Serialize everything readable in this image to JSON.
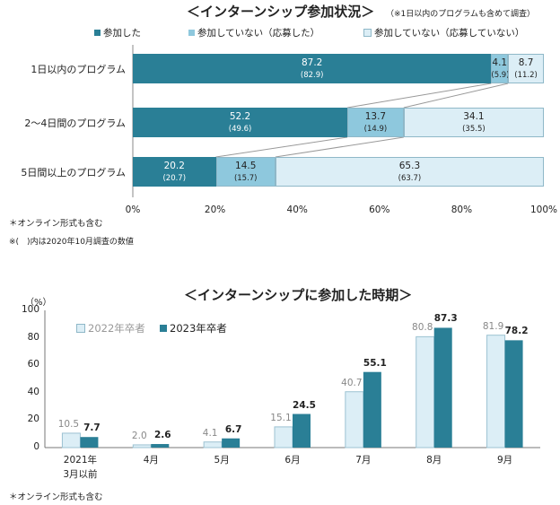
{
  "top_chart": {
    "title": "＜インターンシップ参加状況＞",
    "note_top": "（※1日以内のプログラムも含めて調査）",
    "legend": [
      "参加した",
      "参加していない（応募した）",
      "参加していない（応募していない）"
    ],
    "footnote1": "＊オンライン形式も含む",
    "footnote2": "※(　)内は2020年10月調査の数値",
    "colors": [
      "#2a7f96",
      "#8ec8dd",
      "#dceef6"
    ]
  },
  "bottom_chart": {
    "title": "＜インターンシップに参加した時期＞",
    "yunit": "（%）",
    "legend": [
      "2022年卒者",
      "2023年卒者"
    ],
    "footnote": "＊オンライン形式も含む",
    "colors": [
      "#dceef6",
      "#2a7f96"
    ]
  },
  "chart_data": [
    {
      "type": "bar",
      "orientation": "horizontal-stacked",
      "title": "＜インターンシップ参加状況＞",
      "categories": [
        "1日以内のプログラム",
        "2～4日間のプログラム",
        "5日間以上のプログラム"
      ],
      "series": [
        {
          "name": "参加した",
          "values": [
            87.2,
            52.2,
            20.2
          ],
          "prev_labels": [
            "(82.9)",
            "(49.6)",
            "(20.7)"
          ]
        },
        {
          "name": "参加していない（応募した）",
          "values": [
            4.1,
            13.7,
            14.5
          ],
          "prev_labels": [
            "(5.9)",
            "(14.9)",
            "(15.7)"
          ]
        },
        {
          "name": "参加していない（応募していない）",
          "values": [
            8.7,
            34.1,
            65.3
          ],
          "prev_labels": [
            "(11.2)",
            "(35.5)",
            "(63.7)"
          ]
        }
      ],
      "xticks": [
        "0%",
        "20%",
        "40%",
        "60%",
        "80%",
        "100%"
      ],
      "xlim": [
        0,
        100
      ]
    },
    {
      "type": "bar",
      "title": "＜インターンシップに参加した時期＞",
      "categories": [
        "2021年\n3月以前",
        "4月",
        "5月",
        "6月",
        "7月",
        "8月",
        "9月"
      ],
      "series": [
        {
          "name": "2022年卒者",
          "values": [
            10.5,
            2.0,
            4.1,
            15.1,
            40.7,
            80.8,
            81.9
          ],
          "labels": [
            "10.5",
            "2.0",
            "4.1",
            "15.1",
            "40.7",
            "80.8",
            "81.9"
          ]
        },
        {
          "name": "2023年卒者",
          "values": [
            7.7,
            2.6,
            6.7,
            24.5,
            55.1,
            87.3,
            78.2
          ],
          "labels": [
            "7.7",
            "2.6",
            "6.7",
            "24.5",
            "55.1",
            "87.3",
            "78.2"
          ]
        }
      ],
      "yticks": [
        "0",
        "20",
        "40",
        "60",
        "80",
        "100"
      ],
      "ylim": [
        0,
        100
      ],
      "ylabel": "（%）"
    }
  ]
}
